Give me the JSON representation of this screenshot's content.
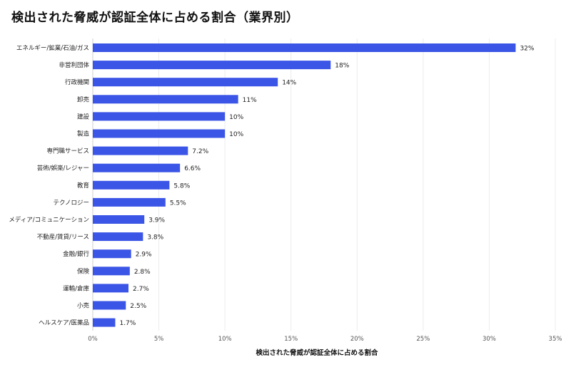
{
  "chart_data": {
    "type": "bar",
    "orientation": "horizontal",
    "title": "検出された脅威が認証全体に占める割合（業界別）",
    "xlabel": "検出された脅威が認証全体に占める割合",
    "ylabel": "",
    "xlim": [
      0,
      35
    ],
    "x_ticks": [
      "0%",
      "5%",
      "10%",
      "15%",
      "20%",
      "25%",
      "30%",
      "35%"
    ],
    "grid": true,
    "bar_color": "#3b55e6",
    "categories": [
      "エネルギー/鉱業/石油/ガス",
      "非営利団体",
      "行政機関",
      "卸売",
      "建設",
      "製造",
      "専門職サービス",
      "芸術/娯楽/レジャー",
      "教育",
      "テクノロジー",
      "メディア/コミュニケーション",
      "不動産/賃貸/リース",
      "金融/銀行",
      "保険",
      "運輸/倉庫",
      "小売",
      "ヘルスケア/医薬品"
    ],
    "values": [
      32,
      18,
      14,
      11,
      10,
      10,
      7.2,
      6.6,
      5.8,
      5.5,
      3.9,
      3.8,
      2.9,
      2.8,
      2.7,
      2.5,
      1.7
    ],
    "value_labels": [
      "32%",
      "18%",
      "14%",
      "11%",
      "10%",
      "10%",
      "7.2%",
      "6.6%",
      "5.8%",
      "5.5%",
      "3.9%",
      "3.8%",
      "2.9%",
      "2.8%",
      "2.7%",
      "2.5%",
      "1.7%"
    ]
  }
}
